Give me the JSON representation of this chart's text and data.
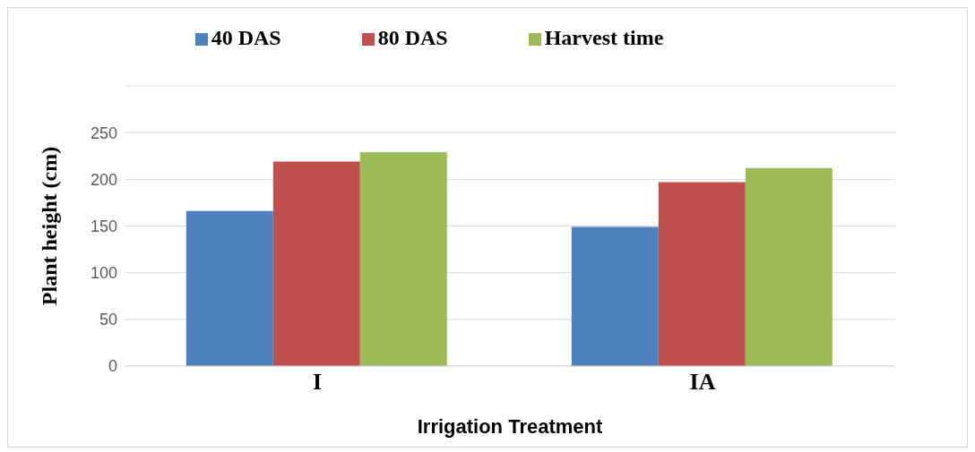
{
  "chart_data": {
    "type": "bar",
    "xlabel": "Irrigation Treatment",
    "ylabel": "Plant height (cm)",
    "categories": [
      "I",
      "IA"
    ],
    "series": [
      {
        "name": "40 DAS",
        "color": "#4f81bd",
        "values": [
          166,
          149
        ]
      },
      {
        "name": "80 DAS",
        "color": "#c0504d",
        "values": [
          219,
          197
        ]
      },
      {
        "name": "Harvest time",
        "color": "#9bbb59",
        "values": [
          229,
          212
        ]
      }
    ],
    "ylim": [
      0,
      300
    ],
    "yticks": [
      0,
      50,
      100,
      150,
      200,
      250
    ],
    "grid": "y",
    "legend": "top"
  }
}
